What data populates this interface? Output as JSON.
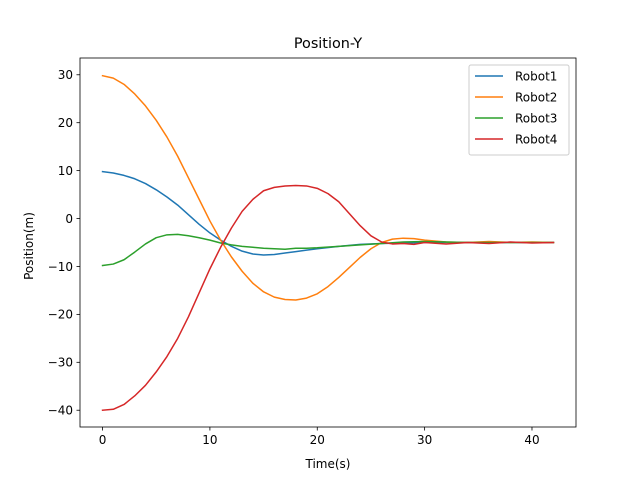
{
  "chart_data": {
    "type": "line",
    "title": "Position-Y",
    "xlabel": "Time(s)",
    "ylabel": "Position(m)",
    "xlim": [
      -2.1,
      44.1
    ],
    "ylim": [
      -43.5,
      33.5
    ],
    "xticks": [
      0,
      10,
      20,
      30,
      40
    ],
    "yticks": [
      -40,
      -30,
      -20,
      -10,
      0,
      10,
      20,
      30
    ],
    "grid": false,
    "legend_position": "top-right",
    "series": [
      {
        "name": "Robot1",
        "color": "#1f77b4",
        "x": [
          0,
          1,
          2,
          3,
          4,
          5,
          6,
          7,
          8,
          9,
          10,
          11,
          12,
          13,
          14,
          15,
          16,
          17,
          18,
          19,
          20,
          22,
          24,
          26,
          28,
          30,
          32,
          34,
          36,
          38,
          40,
          42
        ],
        "y": [
          9.8,
          9.5,
          9.0,
          8.3,
          7.3,
          6.0,
          4.5,
          2.8,
          0.8,
          -1.2,
          -3.0,
          -4.5,
          -5.8,
          -6.8,
          -7.4,
          -7.6,
          -7.5,
          -7.2,
          -6.9,
          -6.6,
          -6.3,
          -5.8,
          -5.4,
          -5.2,
          -5.1,
          -5.0,
          -5.0,
          -5.0,
          -5.0,
          -5.0,
          -5.0,
          -5.0
        ]
      },
      {
        "name": "Robot2",
        "color": "#ff7f0e",
        "x": [
          0,
          1,
          2,
          3,
          4,
          5,
          6,
          7,
          8,
          9,
          10,
          11,
          12,
          13,
          14,
          15,
          16,
          17,
          18,
          19,
          20,
          21,
          22,
          23,
          24,
          25,
          26,
          27,
          28,
          29,
          30,
          32,
          34,
          36,
          38,
          40,
          42
        ],
        "y": [
          29.8,
          29.3,
          28.0,
          26.0,
          23.5,
          20.5,
          17.0,
          13.0,
          8.5,
          4.0,
          -0.5,
          -4.5,
          -8.0,
          -11.0,
          -13.5,
          -15.3,
          -16.4,
          -16.9,
          -17.0,
          -16.6,
          -15.7,
          -14.2,
          -12.3,
          -10.2,
          -8.1,
          -6.3,
          -5.0,
          -4.3,
          -4.1,
          -4.2,
          -4.5,
          -4.9,
          -5.0,
          -4.8,
          -5.0,
          -4.9,
          -5.0
        ]
      },
      {
        "name": "Robot3",
        "color": "#2ca02c",
        "x": [
          0,
          1,
          2,
          3,
          4,
          5,
          6,
          7,
          8,
          9,
          10,
          11,
          12,
          13,
          14,
          15,
          16,
          17,
          18,
          19,
          20,
          22,
          24,
          26,
          28,
          30,
          32,
          34,
          36,
          38,
          40,
          42
        ],
        "y": [
          -9.8,
          -9.5,
          -8.6,
          -7.0,
          -5.3,
          -4.0,
          -3.4,
          -3.3,
          -3.6,
          -4.0,
          -4.5,
          -5.1,
          -5.5,
          -5.8,
          -6.0,
          -6.2,
          -6.3,
          -6.4,
          -6.2,
          -6.2,
          -6.1,
          -5.8,
          -5.5,
          -5.2,
          -4.9,
          -4.8,
          -4.9,
          -5.0,
          -5.0,
          -5.0,
          -5.0,
          -5.0
        ]
      },
      {
        "name": "Robot4",
        "color": "#d62728",
        "x": [
          0,
          1,
          2,
          3,
          4,
          5,
          6,
          7,
          8,
          9,
          10,
          11,
          12,
          13,
          14,
          15,
          16,
          17,
          18,
          19,
          20,
          21,
          22,
          23,
          24,
          25,
          26,
          27,
          28,
          29,
          30,
          32,
          34,
          36,
          38,
          40,
          42
        ],
        "y": [
          -40.0,
          -39.8,
          -38.8,
          -37.0,
          -34.8,
          -32.0,
          -28.8,
          -25.0,
          -20.5,
          -15.5,
          -10.5,
          -6.0,
          -2.0,
          1.5,
          4.0,
          5.8,
          6.5,
          6.8,
          6.9,
          6.8,
          6.3,
          5.2,
          3.5,
          1.0,
          -1.5,
          -3.6,
          -4.9,
          -5.3,
          -5.2,
          -5.4,
          -5.0,
          -5.3,
          -5.0,
          -5.2,
          -4.9,
          -5.1,
          -5.0
        ]
      }
    ]
  }
}
